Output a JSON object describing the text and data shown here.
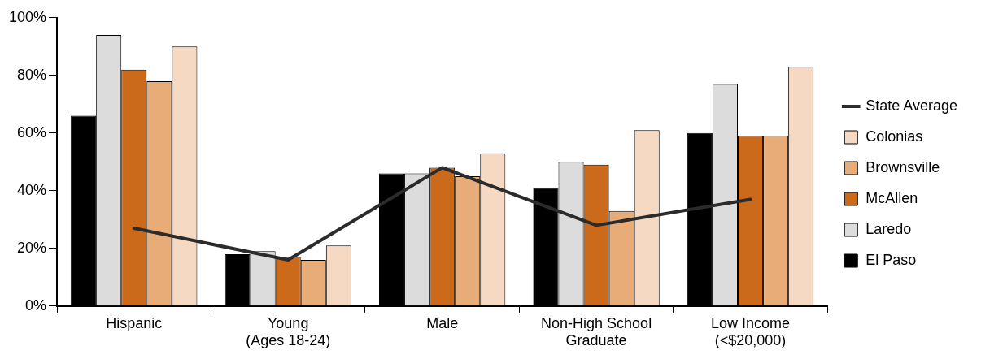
{
  "chart_data": {
    "type": "bar",
    "categories": [
      "Hispanic",
      "Young\n(Ages 18-24)",
      "Male",
      "Non-High School\nGraduate",
      "Low Income\n(<$20,000)"
    ],
    "series": [
      {
        "name": "El Paso",
        "color": "#000000",
        "values": [
          66,
          18,
          46,
          41,
          60
        ]
      },
      {
        "name": "Laredo",
        "color": "#dcdcdc",
        "values": [
          94,
          19,
          46,
          50,
          77
        ]
      },
      {
        "name": "McAllen",
        "color": "#cc6a1c",
        "values": [
          82,
          17,
          48,
          49,
          59
        ]
      },
      {
        "name": "Brownsville",
        "color": "#e8ac78",
        "values": [
          78,
          16,
          45,
          33,
          59
        ]
      },
      {
        "name": "Colonias",
        "color": "#f5d9c2",
        "values": [
          90,
          21,
          53,
          61,
          83
        ]
      },
      {
        "name": "State Average",
        "type": "line",
        "color": "#2b2b2b",
        "values": [
          27,
          16,
          48,
          28,
          37
        ]
      }
    ],
    "ylim": [
      0,
      100
    ],
    "yticks": [
      {
        "value": 0,
        "label": "0%"
      },
      {
        "value": 20,
        "label": "20%"
      },
      {
        "value": 40,
        "label": "40%"
      },
      {
        "value": 60,
        "label": "60%"
      },
      {
        "value": 80,
        "label": "80%"
      },
      {
        "value": 100,
        "label": "100%"
      }
    ],
    "grid": false,
    "legend": "right",
    "marker": "none"
  }
}
